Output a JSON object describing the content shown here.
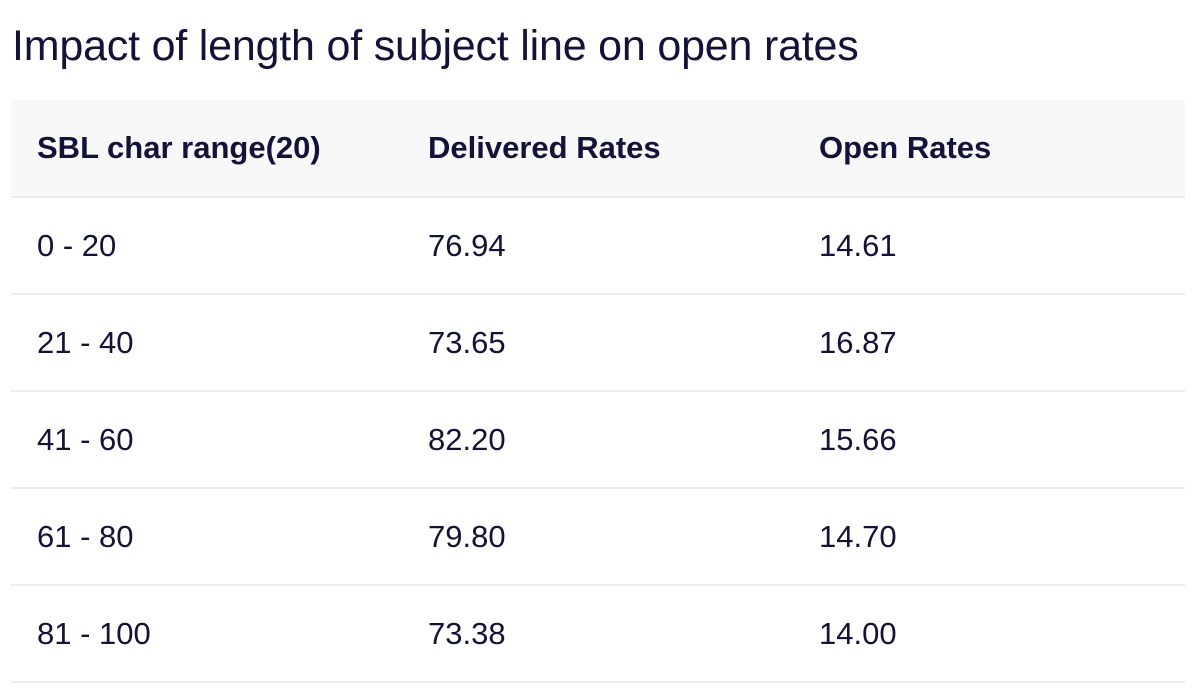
{
  "title": "Impact of length of subject line on open rates",
  "table": {
    "headers": [
      "SBL char range(20)",
      "Delivered Rates",
      "Open Rates"
    ],
    "rows": [
      [
        "0 - 20",
        "76.94",
        "14.61"
      ],
      [
        "21 - 40",
        "73.65",
        "16.87"
      ],
      [
        "41 - 60",
        "82.20",
        "15.66"
      ],
      [
        "61 - 80",
        "79.80",
        "14.70"
      ],
      [
        "81 - 100",
        "73.38",
        "14.00"
      ]
    ]
  }
}
